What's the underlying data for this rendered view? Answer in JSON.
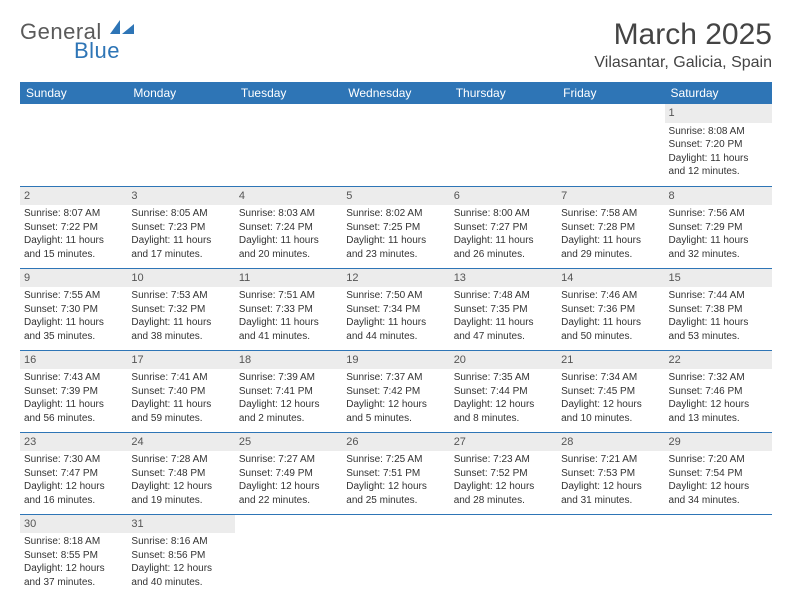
{
  "logo": {
    "text1": "General",
    "text2": "Blue"
  },
  "title": "March 2025",
  "location": "Vilasantar, Galicia, Spain",
  "days_of_week": [
    "Sunday",
    "Monday",
    "Tuesday",
    "Wednesday",
    "Thursday",
    "Friday",
    "Saturday"
  ],
  "colors": {
    "header_bg": "#2e75b6",
    "header_text": "#ffffff",
    "daynum_bg": "#ececec",
    "border": "#2e75b6",
    "text": "#333333",
    "logo_gray": "#5a5a5a",
    "logo_blue": "#2e75b6"
  },
  "cells": {
    "1": {
      "sunrise": "Sunrise: 8:08 AM",
      "sunset": "Sunset: 7:20 PM",
      "day1": "Daylight: 11 hours",
      "day2": "and 12 minutes."
    },
    "2": {
      "sunrise": "Sunrise: 8:07 AM",
      "sunset": "Sunset: 7:22 PM",
      "day1": "Daylight: 11 hours",
      "day2": "and 15 minutes."
    },
    "3": {
      "sunrise": "Sunrise: 8:05 AM",
      "sunset": "Sunset: 7:23 PM",
      "day1": "Daylight: 11 hours",
      "day2": "and 17 minutes."
    },
    "4": {
      "sunrise": "Sunrise: 8:03 AM",
      "sunset": "Sunset: 7:24 PM",
      "day1": "Daylight: 11 hours",
      "day2": "and 20 minutes."
    },
    "5": {
      "sunrise": "Sunrise: 8:02 AM",
      "sunset": "Sunset: 7:25 PM",
      "day1": "Daylight: 11 hours",
      "day2": "and 23 minutes."
    },
    "6": {
      "sunrise": "Sunrise: 8:00 AM",
      "sunset": "Sunset: 7:27 PM",
      "day1": "Daylight: 11 hours",
      "day2": "and 26 minutes."
    },
    "7": {
      "sunrise": "Sunrise: 7:58 AM",
      "sunset": "Sunset: 7:28 PM",
      "day1": "Daylight: 11 hours",
      "day2": "and 29 minutes."
    },
    "8": {
      "sunrise": "Sunrise: 7:56 AM",
      "sunset": "Sunset: 7:29 PM",
      "day1": "Daylight: 11 hours",
      "day2": "and 32 minutes."
    },
    "9": {
      "sunrise": "Sunrise: 7:55 AM",
      "sunset": "Sunset: 7:30 PM",
      "day1": "Daylight: 11 hours",
      "day2": "and 35 minutes."
    },
    "10": {
      "sunrise": "Sunrise: 7:53 AM",
      "sunset": "Sunset: 7:32 PM",
      "day1": "Daylight: 11 hours",
      "day2": "and 38 minutes."
    },
    "11": {
      "sunrise": "Sunrise: 7:51 AM",
      "sunset": "Sunset: 7:33 PM",
      "day1": "Daylight: 11 hours",
      "day2": "and 41 minutes."
    },
    "12": {
      "sunrise": "Sunrise: 7:50 AM",
      "sunset": "Sunset: 7:34 PM",
      "day1": "Daylight: 11 hours",
      "day2": "and 44 minutes."
    },
    "13": {
      "sunrise": "Sunrise: 7:48 AM",
      "sunset": "Sunset: 7:35 PM",
      "day1": "Daylight: 11 hours",
      "day2": "and 47 minutes."
    },
    "14": {
      "sunrise": "Sunrise: 7:46 AM",
      "sunset": "Sunset: 7:36 PM",
      "day1": "Daylight: 11 hours",
      "day2": "and 50 minutes."
    },
    "15": {
      "sunrise": "Sunrise: 7:44 AM",
      "sunset": "Sunset: 7:38 PM",
      "day1": "Daylight: 11 hours",
      "day2": "and 53 minutes."
    },
    "16": {
      "sunrise": "Sunrise: 7:43 AM",
      "sunset": "Sunset: 7:39 PM",
      "day1": "Daylight: 11 hours",
      "day2": "and 56 minutes."
    },
    "17": {
      "sunrise": "Sunrise: 7:41 AM",
      "sunset": "Sunset: 7:40 PM",
      "day1": "Daylight: 11 hours",
      "day2": "and 59 minutes."
    },
    "18": {
      "sunrise": "Sunrise: 7:39 AM",
      "sunset": "Sunset: 7:41 PM",
      "day1": "Daylight: 12 hours",
      "day2": "and 2 minutes."
    },
    "19": {
      "sunrise": "Sunrise: 7:37 AM",
      "sunset": "Sunset: 7:42 PM",
      "day1": "Daylight: 12 hours",
      "day2": "and 5 minutes."
    },
    "20": {
      "sunrise": "Sunrise: 7:35 AM",
      "sunset": "Sunset: 7:44 PM",
      "day1": "Daylight: 12 hours",
      "day2": "and 8 minutes."
    },
    "21": {
      "sunrise": "Sunrise: 7:34 AM",
      "sunset": "Sunset: 7:45 PM",
      "day1": "Daylight: 12 hours",
      "day2": "and 10 minutes."
    },
    "22": {
      "sunrise": "Sunrise: 7:32 AM",
      "sunset": "Sunset: 7:46 PM",
      "day1": "Daylight: 12 hours",
      "day2": "and 13 minutes."
    },
    "23": {
      "sunrise": "Sunrise: 7:30 AM",
      "sunset": "Sunset: 7:47 PM",
      "day1": "Daylight: 12 hours",
      "day2": "and 16 minutes."
    },
    "24": {
      "sunrise": "Sunrise: 7:28 AM",
      "sunset": "Sunset: 7:48 PM",
      "day1": "Daylight: 12 hours",
      "day2": "and 19 minutes."
    },
    "25": {
      "sunrise": "Sunrise: 7:27 AM",
      "sunset": "Sunset: 7:49 PM",
      "day1": "Daylight: 12 hours",
      "day2": "and 22 minutes."
    },
    "26": {
      "sunrise": "Sunrise: 7:25 AM",
      "sunset": "Sunset: 7:51 PM",
      "day1": "Daylight: 12 hours",
      "day2": "and 25 minutes."
    },
    "27": {
      "sunrise": "Sunrise: 7:23 AM",
      "sunset": "Sunset: 7:52 PM",
      "day1": "Daylight: 12 hours",
      "day2": "and 28 minutes."
    },
    "28": {
      "sunrise": "Sunrise: 7:21 AM",
      "sunset": "Sunset: 7:53 PM",
      "day1": "Daylight: 12 hours",
      "day2": "and 31 minutes."
    },
    "29": {
      "sunrise": "Sunrise: 7:20 AM",
      "sunset": "Sunset: 7:54 PM",
      "day1": "Daylight: 12 hours",
      "day2": "and 34 minutes."
    },
    "30": {
      "sunrise": "Sunrise: 8:18 AM",
      "sunset": "Sunset: 8:55 PM",
      "day1": "Daylight: 12 hours",
      "day2": "and 37 minutes."
    },
    "31": {
      "sunrise": "Sunrise: 8:16 AM",
      "sunset": "Sunset: 8:56 PM",
      "day1": "Daylight: 12 hours",
      "day2": "and 40 minutes."
    }
  },
  "layout": [
    [
      null,
      null,
      null,
      null,
      null,
      null,
      "1"
    ],
    [
      "2",
      "3",
      "4",
      "5",
      "6",
      "7",
      "8"
    ],
    [
      "9",
      "10",
      "11",
      "12",
      "13",
      "14",
      "15"
    ],
    [
      "16",
      "17",
      "18",
      "19",
      "20",
      "21",
      "22"
    ],
    [
      "23",
      "24",
      "25",
      "26",
      "27",
      "28",
      "29"
    ],
    [
      "30",
      "31",
      null,
      null,
      null,
      null,
      null
    ]
  ]
}
